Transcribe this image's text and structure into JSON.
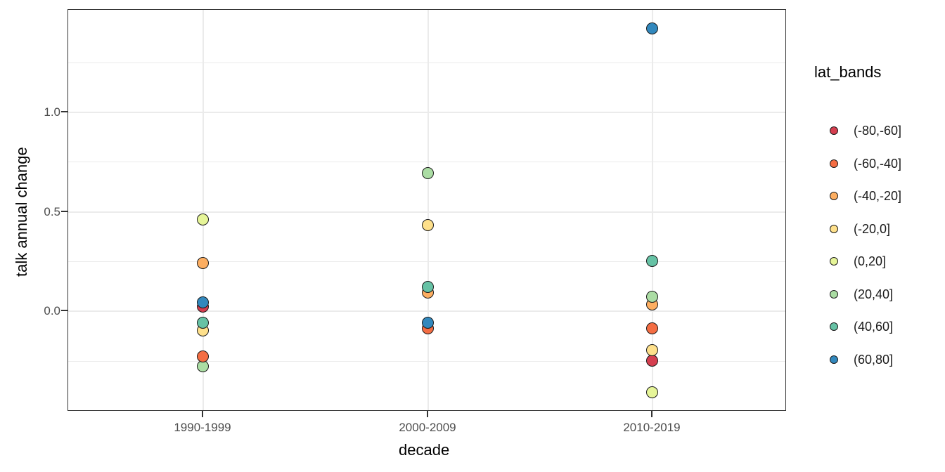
{
  "chart_data": {
    "type": "scatter",
    "title": "",
    "xlabel": "decade",
    "ylabel": "talk annual change",
    "categories": [
      "1990-1999",
      "2000-2009",
      "2010-2019"
    ],
    "y_ticks": [
      0.0,
      0.5,
      1.0
    ],
    "y_tick_labels": [
      "0.0",
      "0.5",
      "1.0"
    ],
    "y_minor_gridlines": [
      -0.25,
      0.25,
      0.75,
      1.25
    ],
    "ylim": [
      -0.504,
      1.516
    ],
    "grid": true,
    "legend": {
      "title": "lat_bands",
      "position": "right"
    },
    "series": [
      {
        "name": "(-80,-60]",
        "color": "#d53e4f",
        "values": [
          0.02,
          null,
          -0.25
        ]
      },
      {
        "name": "(-60,-40]",
        "color": "#f46d43",
        "values": [
          -0.23,
          -0.09,
          -0.09
        ]
      },
      {
        "name": "(-40,-20]",
        "color": "#fdae61",
        "values": [
          0.24,
          0.09,
          0.03
        ]
      },
      {
        "name": "(-20,0]",
        "color": "#fee08b",
        "values": [
          -0.1,
          0.43,
          -0.2
        ]
      },
      {
        "name": "(0,20]",
        "color": "#e6f598",
        "values": [
          0.46,
          null,
          -0.41
        ]
      },
      {
        "name": "(20,40]",
        "color": "#abdda4",
        "values": [
          -0.28,
          0.69,
          0.07
        ]
      },
      {
        "name": "(40,60]",
        "color": "#66c2a5",
        "values": [
          -0.06,
          0.12,
          0.25
        ]
      },
      {
        "name": "(60,80]",
        "color": "#3288bd",
        "values": [
          0.04,
          -0.06,
          1.42
        ]
      }
    ],
    "style": {
      "background": "#ffffff",
      "panel_border": "#333333",
      "grid_color": "#ebebeb",
      "tick_color": "#333333",
      "tick_label_color": "#4d4d4d",
      "point_stroke": "#1a1a1a"
    }
  }
}
